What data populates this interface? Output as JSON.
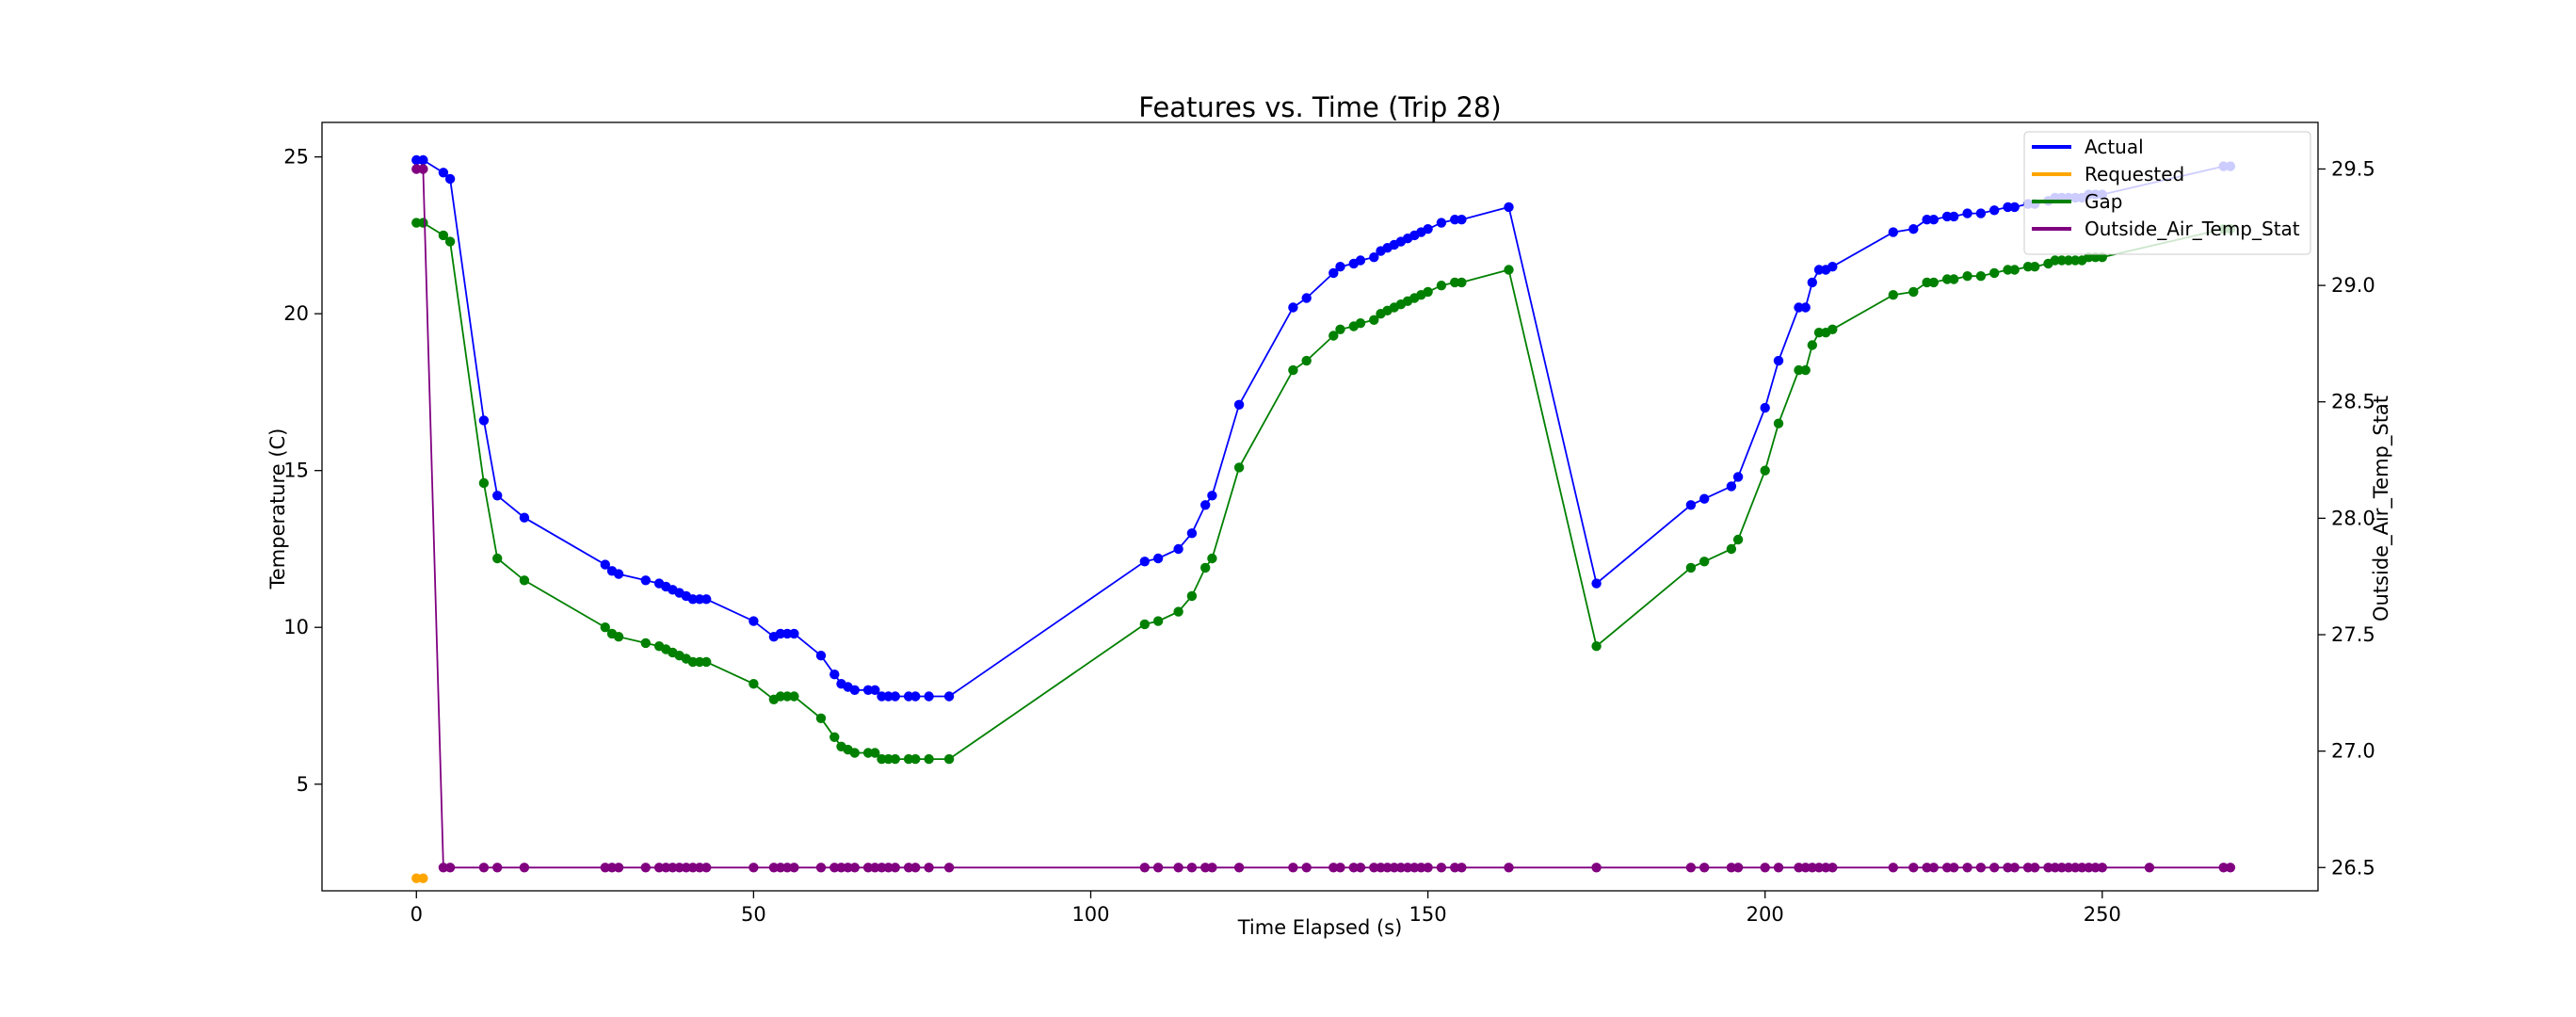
{
  "chart_data": {
    "type": "line",
    "title": "Features vs. Time (Trip 28)",
    "xlabel": "Time Elapsed (s)",
    "ylabel": "Temperature (C)",
    "ylabel_right": "Outside_Air_Temp_Stat",
    "xlim": [
      -14,
      282
    ],
    "ylim": [
      1.6,
      26.1
    ],
    "ylim_right": [
      26.4,
      29.7
    ],
    "xticks": [
      0,
      50,
      100,
      150,
      200,
      250
    ],
    "yticks": [
      5,
      10,
      15,
      20,
      25
    ],
    "yticks_right": [
      26.5,
      27.0,
      27.5,
      28.0,
      28.5,
      29.0,
      29.5
    ],
    "grid": false,
    "legend": "top-right",
    "colors": {
      "Actual": "#0000ff",
      "Requested": "#ffa500",
      "Gap": "#008000",
      "Outside_Air_Temp_Stat": "#800080"
    },
    "series": [
      {
        "name": "Actual",
        "axis": "left",
        "x": [
          0,
          1,
          4,
          5,
          10,
          12,
          16,
          28,
          29,
          30,
          34,
          36,
          37,
          38,
          39,
          40,
          41,
          42,
          43,
          50,
          53,
          54,
          55,
          56,
          60,
          62,
          63,
          64,
          65,
          67,
          68,
          69,
          70,
          71,
          73,
          74,
          76,
          79,
          108,
          110,
          113,
          115,
          117,
          118,
          122,
          130,
          132,
          136,
          137,
          139,
          140,
          142,
          143,
          144,
          145,
          146,
          147,
          148,
          149,
          150,
          152,
          154,
          155,
          162,
          175,
          189,
          191,
          195,
          196,
          200,
          202,
          205,
          206,
          207,
          208,
          209,
          210,
          219,
          222,
          224,
          225,
          227,
          228,
          230,
          232,
          234,
          236,
          237,
          239,
          240,
          242,
          243,
          244,
          245,
          246,
          247,
          248,
          249,
          250,
          268,
          269
        ],
        "y": [
          24.9,
          24.9,
          24.5,
          24.3,
          16.6,
          14.2,
          13.5,
          12.0,
          11.8,
          11.7,
          11.5,
          11.4,
          11.3,
          11.2,
          11.1,
          11.0,
          10.9,
          10.9,
          10.9,
          10.2,
          9.7,
          9.8,
          9.8,
          9.8,
          9.1,
          8.5,
          8.2,
          8.1,
          8.0,
          8.0,
          8.0,
          7.8,
          7.8,
          7.8,
          7.8,
          7.8,
          7.8,
          7.8,
          12.1,
          12.2,
          12.5,
          13.0,
          13.9,
          14.2,
          17.1,
          20.2,
          20.5,
          21.3,
          21.5,
          21.6,
          21.7,
          21.8,
          22.0,
          22.1,
          22.2,
          22.3,
          22.4,
          22.5,
          22.6,
          22.7,
          22.9,
          23.0,
          23.0,
          23.4,
          11.4,
          13.9,
          14.1,
          14.5,
          14.8,
          17.0,
          18.5,
          20.2,
          20.2,
          21.0,
          21.4,
          21.4,
          21.5,
          22.6,
          22.7,
          23.0,
          23.0,
          23.1,
          23.1,
          23.2,
          23.2,
          23.3,
          23.4,
          23.4,
          23.5,
          23.5,
          23.6,
          23.7,
          23.7,
          23.7,
          23.7,
          23.7,
          23.8,
          23.8,
          23.8,
          24.7,
          24.7
        ]
      },
      {
        "name": "Requested",
        "axis": "left",
        "x": [
          0,
          1
        ],
        "y": [
          2.0,
          2.0
        ]
      },
      {
        "name": "Gap",
        "axis": "left",
        "x": [
          0,
          1,
          4,
          5,
          10,
          12,
          16,
          28,
          29,
          30,
          34,
          36,
          37,
          38,
          39,
          40,
          41,
          42,
          43,
          50,
          53,
          54,
          55,
          56,
          60,
          62,
          63,
          64,
          65,
          67,
          68,
          69,
          70,
          71,
          73,
          74,
          76,
          79,
          108,
          110,
          113,
          115,
          117,
          118,
          122,
          130,
          132,
          136,
          137,
          139,
          140,
          142,
          143,
          144,
          145,
          146,
          147,
          148,
          149,
          150,
          152,
          154,
          155,
          162,
          175,
          189,
          191,
          195,
          196,
          200,
          202,
          205,
          206,
          207,
          208,
          209,
          210,
          219,
          222,
          224,
          225,
          227,
          228,
          230,
          232,
          234,
          236,
          237,
          239,
          240,
          242,
          243,
          244,
          245,
          246,
          247,
          248,
          249,
          250,
          268,
          269
        ],
        "y": [
          22.9,
          22.9,
          22.5,
          22.3,
          14.6,
          12.2,
          11.5,
          10.0,
          9.8,
          9.7,
          9.5,
          9.4,
          9.3,
          9.2,
          9.1,
          9.0,
          8.9,
          8.9,
          8.9,
          8.2,
          7.7,
          7.8,
          7.8,
          7.8,
          7.1,
          6.5,
          6.2,
          6.1,
          6.0,
          6.0,
          6.0,
          5.8,
          5.8,
          5.8,
          5.8,
          5.8,
          5.8,
          5.8,
          10.1,
          10.2,
          10.5,
          11.0,
          11.9,
          12.2,
          15.1,
          18.2,
          18.5,
          19.3,
          19.5,
          19.6,
          19.7,
          19.8,
          20.0,
          20.1,
          20.2,
          20.3,
          20.4,
          20.5,
          20.6,
          20.7,
          20.9,
          21.0,
          21.0,
          21.4,
          9.4,
          11.9,
          12.1,
          12.5,
          12.8,
          15.0,
          16.5,
          18.2,
          18.2,
          19.0,
          19.4,
          19.4,
          19.5,
          20.6,
          20.7,
          21.0,
          21.0,
          21.1,
          21.1,
          21.2,
          21.2,
          21.3,
          21.4,
          21.4,
          21.5,
          21.5,
          21.6,
          21.7,
          21.7,
          21.7,
          21.7,
          21.7,
          21.8,
          21.8,
          21.8,
          22.7,
          22.7
        ]
      },
      {
        "name": "Outside_Air_Temp_Stat",
        "axis": "right",
        "x": [
          0,
          1,
          4,
          5,
          10,
          12,
          16,
          28,
          29,
          30,
          34,
          36,
          37,
          38,
          39,
          40,
          41,
          42,
          43,
          50,
          53,
          54,
          55,
          56,
          60,
          62,
          63,
          64,
          65,
          67,
          68,
          69,
          70,
          71,
          73,
          74,
          76,
          79,
          108,
          110,
          113,
          115,
          117,
          118,
          122,
          130,
          132,
          136,
          137,
          139,
          140,
          142,
          143,
          144,
          145,
          146,
          147,
          148,
          149,
          150,
          152,
          154,
          155,
          162,
          175,
          189,
          191,
          195,
          196,
          200,
          202,
          205,
          206,
          207,
          208,
          209,
          210,
          219,
          222,
          224,
          225,
          227,
          228,
          230,
          232,
          234,
          236,
          237,
          239,
          240,
          242,
          243,
          244,
          245,
          246,
          247,
          248,
          249,
          250,
          257,
          268,
          269
        ],
        "y": [
          29.5,
          29.5,
          26.5,
          26.5,
          26.5,
          26.5,
          26.5,
          26.5,
          26.5,
          26.5,
          26.5,
          26.5,
          26.5,
          26.5,
          26.5,
          26.5,
          26.5,
          26.5,
          26.5,
          26.5,
          26.5,
          26.5,
          26.5,
          26.5,
          26.5,
          26.5,
          26.5,
          26.5,
          26.5,
          26.5,
          26.5,
          26.5,
          26.5,
          26.5,
          26.5,
          26.5,
          26.5,
          26.5,
          26.5,
          26.5,
          26.5,
          26.5,
          26.5,
          26.5,
          26.5,
          26.5,
          26.5,
          26.5,
          26.5,
          26.5,
          26.5,
          26.5,
          26.5,
          26.5,
          26.5,
          26.5,
          26.5,
          26.5,
          26.5,
          26.5,
          26.5,
          26.5,
          26.5,
          26.5,
          26.5,
          26.5,
          26.5,
          26.5,
          26.5,
          26.5,
          26.5,
          26.5,
          26.5,
          26.5,
          26.5,
          26.5,
          26.5,
          26.5,
          26.5,
          26.5,
          26.5,
          26.5,
          26.5,
          26.5,
          26.5,
          26.5,
          26.5,
          26.5,
          26.5,
          26.5,
          26.5,
          26.5,
          26.5,
          26.5,
          26.5,
          26.5,
          26.5,
          26.5,
          26.5,
          26.5,
          26.5,
          26.5
        ]
      }
    ]
  }
}
